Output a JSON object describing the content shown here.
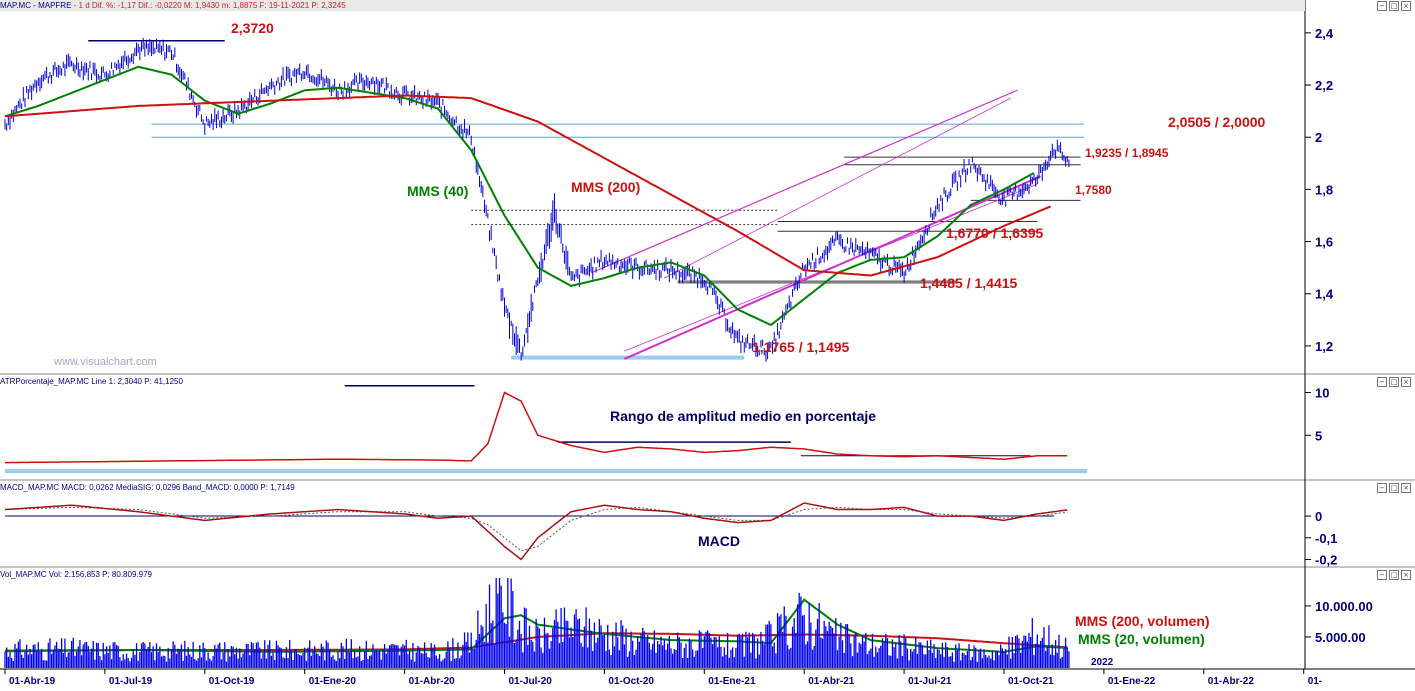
{
  "header": {
    "price_symbol": "MAP.MC - MAPFRE",
    "price_stats": "- 1 d  Dif. %: -1,17  Dif.: -0,0220  M: 1,9430  m: 1,8875  F: 19-11-2021  P: 2,3245",
    "atr": "ATRPorcentaje_MAP.MC  Line 1: 2,3040  P: 41,1250",
    "macd": "MACD_MAP.MC  MACD: 0,0262  MediaSIG: 0,0296  Band_MACD: 0,0000  P: 1,7149",
    "vol": "Vol_MAP.MC  Vol: 2.156.853  P: 80.809.979"
  },
  "watermark": "www.visualchart.com",
  "window_controls": {
    "minimize": "−",
    "maximize": "□",
    "close": "×"
  },
  "colors": {
    "price_bars": "#0000cc",
    "mms40": "#008000",
    "mms200": "#cc1111",
    "channel": "#cc33cc",
    "support_band": "#99ccee",
    "annotation_red": "#cc1111",
    "annotation_navy": "#000066",
    "axis_text": "#000080"
  },
  "chart_data": [
    {
      "type": "line",
      "panel": "price",
      "x_ticks": [
        "01-Abr-19",
        "01-Jul-19",
        "01-Oct-19",
        "01-Ene-20",
        "01-Abr-20",
        "01-Jul-20",
        "01-Oct-20",
        "01-Ene-21",
        "01-Abr-21",
        "01-Jul-21",
        "01-Oct-21",
        "01-Ene-22",
        "01-Abr-22",
        "01-"
      ],
      "y_ticks": [
        "2,4",
        "2,2",
        "2",
        "1,8",
        "1,6",
        "1,4",
        "1,2"
      ],
      "ylim": [
        1.1,
        2.48
      ],
      "series": [
        {
          "name": "MMS (40)",
          "x": [
            0,
            1,
            2,
            3,
            4,
            5,
            6,
            7,
            8,
            9,
            10,
            11,
            12,
            13,
            14,
            15,
            16,
            17,
            18,
            19,
            20,
            21,
            22,
            23,
            24,
            25,
            26,
            27,
            28,
            29,
            30,
            31
          ],
          "values": [
            2.08,
            2.12,
            2.17,
            2.22,
            2.27,
            2.24,
            2.14,
            2.09,
            2.13,
            2.18,
            2.19,
            2.17,
            2.15,
            2.11,
            1.95,
            1.7,
            1.5,
            1.43,
            1.46,
            1.5,
            1.52,
            1.47,
            1.34,
            1.28,
            1.38,
            1.48,
            1.53,
            1.54,
            1.62,
            1.74,
            1.8,
            1.87
          ]
        },
        {
          "name": "MMS (200)",
          "x": [
            0,
            2,
            4,
            6,
            8,
            10,
            12,
            14,
            16,
            18,
            20,
            22,
            24,
            26,
            28,
            30,
            31.5
          ],
          "values": [
            2.08,
            2.1,
            2.12,
            2.13,
            2.14,
            2.15,
            2.16,
            2.15,
            2.06,
            1.92,
            1.78,
            1.64,
            1.49,
            1.47,
            1.54,
            1.66,
            1.74
          ]
        }
      ],
      "price_path": {
        "x": [
          0,
          1,
          2,
          3,
          4,
          5,
          6,
          7,
          8,
          9,
          10,
          11,
          12,
          13,
          14,
          15,
          15.5,
          16,
          16.5,
          17,
          18,
          19,
          20,
          21,
          22,
          23,
          24,
          25,
          26,
          27,
          28,
          29,
          30,
          31,
          31.5,
          32
        ],
        "values": [
          2.05,
          2.22,
          2.28,
          2.24,
          2.34,
          2.33,
          2.05,
          2.1,
          2.2,
          2.26,
          2.18,
          2.22,
          2.16,
          2.13,
          2.0,
          1.35,
          1.17,
          1.45,
          1.72,
          1.45,
          1.53,
          1.5,
          1.49,
          1.46,
          1.22,
          1.18,
          1.5,
          1.6,
          1.55,
          1.48,
          1.74,
          1.9,
          1.76,
          1.84,
          1.96,
          1.9
        ]
      },
      "levels": [
        "2,3720",
        "2,0505 / 2,0000",
        "1,9235 / 1,8945",
        "1,7580",
        "1,6770 / 1,6395",
        "1,4485 / 1,4415",
        "1,1765 / 1,1495"
      ],
      "labels": [
        "MMS (40)",
        "MMS (200)"
      ]
    },
    {
      "type": "line",
      "panel": "atr",
      "title": "Rango de amplitud medio en porcentaje",
      "y_ticks": [
        "10",
        "5"
      ],
      "ylim": [
        0,
        11
      ],
      "x": [
        0,
        5,
        10,
        13,
        14,
        14.5,
        15,
        15.5,
        16,
        17,
        18,
        19,
        20,
        21,
        22,
        23,
        24,
        25,
        26,
        27,
        28,
        29,
        30,
        31,
        32
      ],
      "values": [
        1.8,
        2.0,
        2.2,
        2.1,
        2.0,
        4.0,
        10.0,
        9.0,
        5.0,
        3.8,
        3.0,
        3.6,
        3.4,
        3.0,
        3.2,
        3.6,
        3.4,
        2.8,
        2.6,
        2.5,
        2.6,
        2.4,
        2.2,
        2.6,
        2.6
      ]
    },
    {
      "type": "line",
      "panel": "macd",
      "title": "MACD",
      "y_ticks": [
        "0",
        "-0,1",
        "-0,2"
      ],
      "ylim": [
        -0.23,
        0.12
      ],
      "series": [
        {
          "name": "MACD",
          "x": [
            0,
            2,
            4,
            6,
            8,
            10,
            12,
            13,
            14,
            14.5,
            15,
            15.5,
            16,
            17,
            18,
            19,
            20,
            21,
            22,
            23,
            24,
            25,
            26,
            27,
            28,
            29,
            30,
            31,
            32
          ],
          "values": [
            0.03,
            0.05,
            0.02,
            -0.02,
            0.01,
            0.03,
            0.01,
            -0.01,
            0.0,
            -0.07,
            -0.14,
            -0.2,
            -0.1,
            0.02,
            0.05,
            0.03,
            0.02,
            -0.01,
            -0.03,
            -0.02,
            0.06,
            0.03,
            0.03,
            0.04,
            0.0,
            0.0,
            -0.02,
            0.01,
            0.03
          ]
        },
        {
          "name": "MediaSIG",
          "x": [
            0,
            2,
            4,
            6,
            8,
            10,
            12,
            13,
            14,
            14.5,
            15,
            15.5,
            16,
            17,
            18,
            19,
            20,
            21,
            22,
            23,
            24,
            25,
            26,
            27,
            28,
            29,
            30,
            31,
            32
          ],
          "values": [
            0.03,
            0.04,
            0.03,
            -0.01,
            0.0,
            0.02,
            0.02,
            0.0,
            -0.01,
            -0.04,
            -0.1,
            -0.16,
            -0.14,
            -0.02,
            0.03,
            0.04,
            0.02,
            0.0,
            -0.02,
            -0.02,
            0.03,
            0.04,
            0.03,
            0.03,
            0.01,
            0.0,
            -0.01,
            0.0,
            0.02
          ]
        }
      ]
    },
    {
      "type": "bar",
      "panel": "volume",
      "y_ticks": [
        "10.000.00",
        "5.000.00"
      ],
      "ylim": [
        0,
        14500000
      ],
      "x": [
        0,
        2,
        4,
        6,
        8,
        10,
        12,
        13,
        14,
        14.5,
        15,
        15.5,
        16,
        17,
        18,
        19,
        20,
        21,
        22,
        23,
        24,
        25,
        26,
        27,
        28,
        29,
        30,
        31,
        32
      ],
      "values": [
        3000000,
        3200000,
        2800000,
        3000000,
        2900000,
        3100000,
        3000000,
        2600000,
        4000000,
        9500000,
        12000000,
        7000000,
        5000000,
        7000000,
        6000000,
        4500000,
        4000000,
        4000000,
        3500000,
        5000000,
        9000000,
        5000000,
        4000000,
        3600000,
        3000000,
        2500000,
        2800000,
        6000000,
        3000000
      ],
      "series": [
        {
          "name": "MMS (200, volumen)",
          "x": [
            0,
            4,
            8,
            12,
            14,
            16,
            18,
            20,
            22,
            24,
            26,
            28,
            30,
            32
          ],
          "values": [
            2800000,
            2900000,
            2900000,
            3000000,
            3300000,
            5000000,
            5600000,
            5500000,
            5200000,
            5400000,
            5200000,
            4800000,
            4000000,
            3300000
          ]
        },
        {
          "name": "MMS (20, volumen)",
          "x": [
            0,
            4,
            8,
            12,
            14,
            14.5,
            15,
            15.5,
            16,
            17,
            18,
            20,
            22,
            23,
            24,
            25,
            26,
            28,
            30,
            31,
            32
          ],
          "values": [
            2700000,
            2900000,
            2600000,
            2800000,
            3000000,
            5500000,
            8000000,
            8500000,
            7000000,
            6200000,
            5500000,
            4500000,
            4300000,
            4000000,
            11000000,
            7000000,
            4500000,
            3200000,
            2600000,
            3500000,
            3200000
          ]
        }
      ],
      "x_extra_label": "2022"
    }
  ]
}
